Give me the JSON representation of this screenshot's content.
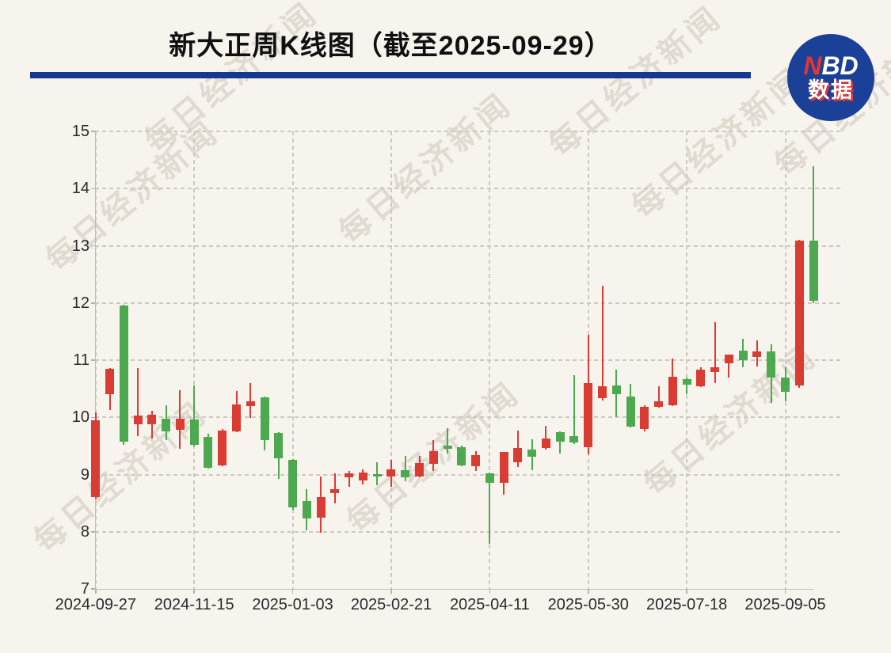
{
  "page": {
    "background": "#f7f4ee"
  },
  "header": {
    "title": "新大正周K线图（截至2025-09-29）",
    "underline_color": "#16388f",
    "logo": {
      "n": "N",
      "bd": "BD",
      "sub": "数据",
      "circle_color": "#1a4098",
      "accent_red": "#e5352e",
      "text_white": "#ffffff"
    }
  },
  "watermark": {
    "text": "每日经济新闻",
    "color": "rgba(172,161,142,0.30)"
  },
  "chart_data": {
    "type": "candlestick",
    "title": "新大正周K线图（截至2025-09-29）",
    "period": "weekly",
    "ylim": [
      7,
      15
    ],
    "y_ticks": [
      7,
      8,
      9,
      10,
      11,
      12,
      13,
      14,
      15
    ],
    "grid": "dashed",
    "legend": "none",
    "up_color": "#d93c33",
    "down_color": "#4da94f",
    "x_ticks": [
      {
        "label": "2024-09-27",
        "index": 0
      },
      {
        "label": "2024-11-15",
        "index": 7
      },
      {
        "label": "2025-01-03",
        "index": 14
      },
      {
        "label": "2025-02-21",
        "index": 21
      },
      {
        "label": "2025-04-11",
        "index": 28
      },
      {
        "label": "2025-05-30",
        "index": 35
      },
      {
        "label": "2025-07-18",
        "index": 42
      },
      {
        "label": "2025-09-05",
        "index": 49
      }
    ],
    "candles": [
      {
        "o": 8.61,
        "h": 10.09,
        "l": 8.58,
        "c": 9.95
      },
      {
        "o": 10.41,
        "h": 10.86,
        "l": 10.13,
        "c": 10.85
      },
      {
        "o": 11.96,
        "h": 11.97,
        "l": 9.52,
        "c": 9.58
      },
      {
        "o": 9.88,
        "h": 10.86,
        "l": 9.67,
        "c": 10.03
      },
      {
        "o": 9.88,
        "h": 10.12,
        "l": 9.63,
        "c": 10.04
      },
      {
        "o": 9.97,
        "h": 10.21,
        "l": 9.6,
        "c": 9.76
      },
      {
        "o": 9.78,
        "h": 10.47,
        "l": 9.45,
        "c": 9.97
      },
      {
        "o": 9.96,
        "h": 10.56,
        "l": 9.49,
        "c": 9.52
      },
      {
        "o": 9.66,
        "h": 9.71,
        "l": 9.11,
        "c": 9.12
      },
      {
        "o": 9.16,
        "h": 9.8,
        "l": 9.14,
        "c": 9.77
      },
      {
        "o": 9.76,
        "h": 10.46,
        "l": 9.74,
        "c": 10.23
      },
      {
        "o": 10.2,
        "h": 10.6,
        "l": 9.99,
        "c": 10.28
      },
      {
        "o": 10.35,
        "h": 10.37,
        "l": 9.42,
        "c": 9.6
      },
      {
        "o": 9.73,
        "h": 9.74,
        "l": 8.93,
        "c": 9.28
      },
      {
        "o": 9.25,
        "h": 9.27,
        "l": 8.38,
        "c": 8.42
      },
      {
        "o": 8.53,
        "h": 8.74,
        "l": 8.02,
        "c": 8.23
      },
      {
        "o": 8.25,
        "h": 8.97,
        "l": 7.98,
        "c": 8.6
      },
      {
        "o": 8.68,
        "h": 9.02,
        "l": 8.49,
        "c": 8.75
      },
      {
        "o": 8.95,
        "h": 9.06,
        "l": 8.78,
        "c": 9.02
      },
      {
        "o": 8.9,
        "h": 9.09,
        "l": 8.83,
        "c": 9.03
      },
      {
        "o": 9.01,
        "h": 9.22,
        "l": 8.81,
        "c": 8.96
      },
      {
        "o": 8.96,
        "h": 9.25,
        "l": 8.78,
        "c": 9.09
      },
      {
        "o": 9.08,
        "h": 9.32,
        "l": 8.88,
        "c": 8.95
      },
      {
        "o": 8.96,
        "h": 9.33,
        "l": 8.95,
        "c": 9.2
      },
      {
        "o": 9.18,
        "h": 9.6,
        "l": 9.06,
        "c": 9.41
      },
      {
        "o": 9.51,
        "h": 9.81,
        "l": 9.36,
        "c": 9.45
      },
      {
        "o": 9.48,
        "h": 9.5,
        "l": 9.14,
        "c": 9.16
      },
      {
        "o": 9.14,
        "h": 9.41,
        "l": 9.06,
        "c": 9.34
      },
      {
        "o": 9.02,
        "h": 9.03,
        "l": 7.79,
        "c": 8.86
      },
      {
        "o": 8.85,
        "h": 9.4,
        "l": 8.65,
        "c": 9.39
      },
      {
        "o": 9.22,
        "h": 9.77,
        "l": 9.13,
        "c": 9.47
      },
      {
        "o": 9.43,
        "h": 9.61,
        "l": 9.07,
        "c": 9.31
      },
      {
        "o": 9.47,
        "h": 9.85,
        "l": 9.44,
        "c": 9.63
      },
      {
        "o": 9.74,
        "h": 9.75,
        "l": 9.36,
        "c": 9.57
      },
      {
        "o": 9.67,
        "h": 10.74,
        "l": 9.53,
        "c": 9.56
      },
      {
        "o": 9.48,
        "h": 11.44,
        "l": 9.35,
        "c": 10.6
      },
      {
        "o": 10.33,
        "h": 12.3,
        "l": 10.3,
        "c": 10.55
      },
      {
        "o": 10.56,
        "h": 10.83,
        "l": 10.01,
        "c": 10.4
      },
      {
        "o": 10.36,
        "h": 10.59,
        "l": 9.83,
        "c": 9.84
      },
      {
        "o": 9.8,
        "h": 10.21,
        "l": 9.76,
        "c": 10.19
      },
      {
        "o": 10.19,
        "h": 10.54,
        "l": 10.17,
        "c": 10.28
      },
      {
        "o": 10.21,
        "h": 11.03,
        "l": 10.2,
        "c": 10.71
      },
      {
        "o": 10.67,
        "h": 10.7,
        "l": 10.41,
        "c": 10.57
      },
      {
        "o": 10.54,
        "h": 10.88,
        "l": 10.53,
        "c": 10.83
      },
      {
        "o": 10.79,
        "h": 11.66,
        "l": 10.6,
        "c": 10.88
      },
      {
        "o": 10.95,
        "h": 11.1,
        "l": 10.7,
        "c": 11.09
      },
      {
        "o": 11.16,
        "h": 11.37,
        "l": 10.88,
        "c": 11.0
      },
      {
        "o": 11.06,
        "h": 11.35,
        "l": 10.89,
        "c": 11.15
      },
      {
        "o": 11.15,
        "h": 11.27,
        "l": 10.25,
        "c": 10.69
      },
      {
        "o": 10.69,
        "h": 10.88,
        "l": 10.28,
        "c": 10.45
      },
      {
        "o": 10.55,
        "h": 13.1,
        "l": 10.52,
        "c": 13.09
      },
      {
        "o": 13.09,
        "h": 14.39,
        "l": 12.0,
        "c": 12.04
      }
    ]
  }
}
